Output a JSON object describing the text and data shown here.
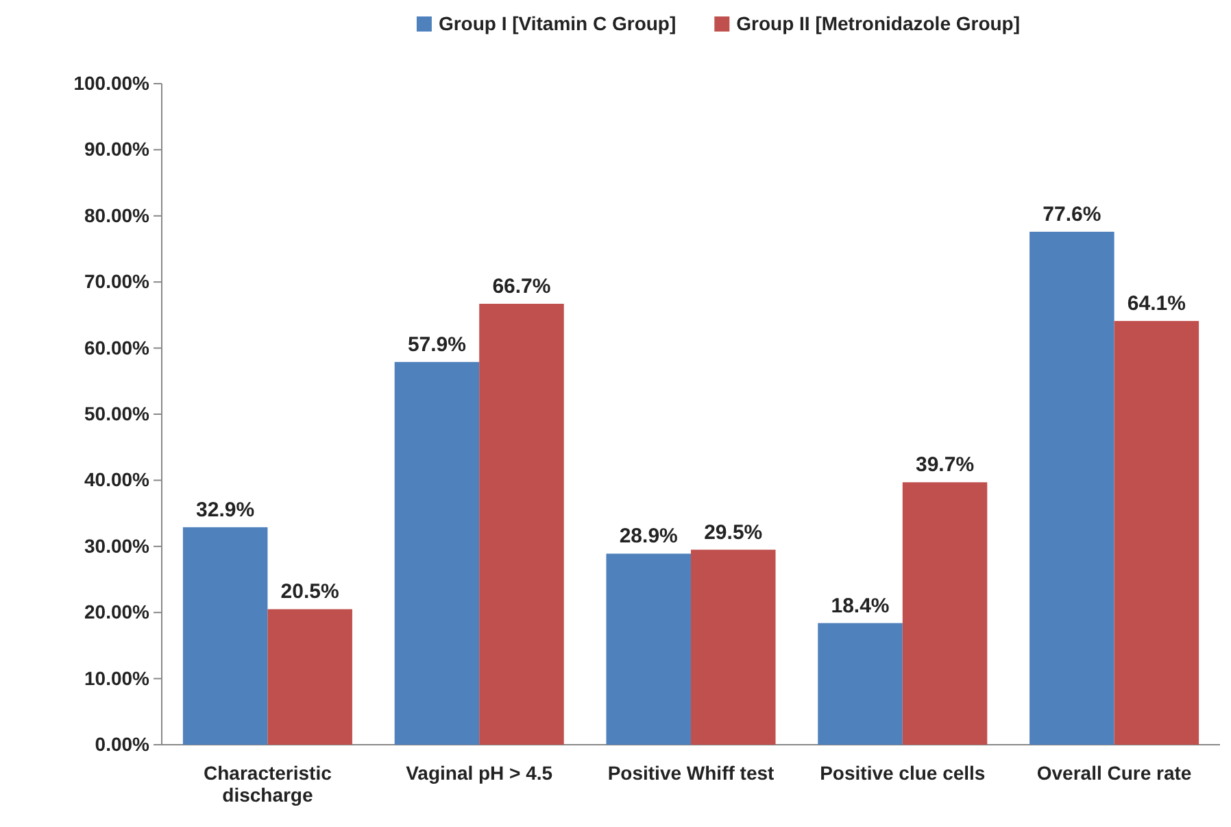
{
  "chart_data": {
    "type": "bar",
    "categories": [
      "Characteristic discharge",
      "Vaginal pH > 4.5",
      "Positive Whiff test",
      "Positive clue cells",
      "Overall Cure rate"
    ],
    "series": [
      {
        "name": "Group I [Vitamin C Group]",
        "color": "#4f81bd",
        "values": [
          32.9,
          57.9,
          28.9,
          18.4,
          77.6
        ],
        "value_labels": [
          "32.9%",
          "57.9%",
          "28.9%",
          "18.4%",
          "77.6%"
        ]
      },
      {
        "name": "Group II [Metronidazole Group]",
        "color": "#c0504d",
        "values": [
          20.5,
          66.7,
          29.5,
          39.7,
          64.1
        ],
        "value_labels": [
          "20.5%",
          "66.7%",
          "29.5%",
          "39.7%",
          "64.1%"
        ]
      }
    ],
    "ylim": [
      0,
      100
    ],
    "yticks": [
      {
        "value": 0,
        "label": "0.00%"
      },
      {
        "value": 10,
        "label": "10.00%"
      },
      {
        "value": 20,
        "label": "20.00%"
      },
      {
        "value": 30,
        "label": "30.00%"
      },
      {
        "value": 40,
        "label": "40.00%"
      },
      {
        "value": 50,
        "label": "50.00%"
      },
      {
        "value": 60,
        "label": "60.00%"
      },
      {
        "value": 70,
        "label": "70.00%"
      },
      {
        "value": 80,
        "label": "80.00%"
      },
      {
        "value": 90,
        "label": "90.00%"
      },
      {
        "value": 100,
        "label": "100.00%"
      }
    ],
    "grid": false,
    "legend": "top"
  }
}
